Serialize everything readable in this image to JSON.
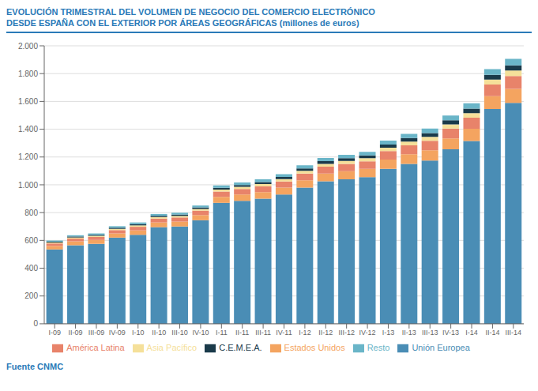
{
  "chart_data": {
    "type": "bar",
    "title": "EVOLUCIÓN TRIMESTRAL DEL VOLUMEN DE NEGOCIO DEL COMERCIO ELECTRÓNICO",
    "subtitle": "DESDE ESPAÑA CON EL EXTERIOR POR ÁREAS GEOGRÁFICAS (millones de euros)",
    "annotations": [
      "Fuente CNMC"
    ],
    "stacked": true,
    "grid": true,
    "legend": "bottom",
    "categories": [
      "I-09",
      "II-09",
      "III-09",
      "IV-09",
      "I-10",
      "II-10",
      "III-10",
      "IV-10",
      "I-11",
      "II-11",
      "III-11",
      "IV-11",
      "I-12",
      "II-12",
      "III-12",
      "IV-12",
      "I-13",
      "II-13",
      "III-13",
      "IV-13",
      "I-14",
      "II-14",
      "III-14"
    ],
    "series": [
      {
        "name": "Unión Europea",
        "color": "#4a8db5",
        "values": [
          535,
          565,
          575,
          620,
          640,
          695,
          700,
          745,
          870,
          885,
          900,
          930,
          980,
          1025,
          1040,
          1055,
          1115,
          1150,
          1175,
          1255,
          1315,
          1545,
          1590
        ]
      },
      {
        "name": "Estados Unidos",
        "color": "#f4a460",
        "values": [
          25,
          28,
          28,
          30,
          32,
          34,
          35,
          37,
          43,
          45,
          47,
          50,
          53,
          56,
          58,
          60,
          67,
          70,
          74,
          78,
          88,
          92,
          100
        ]
      },
      {
        "name": "América Latina",
        "color": "#e8836a",
        "values": [
          18,
          20,
          22,
          24,
          26,
          28,
          30,
          32,
          38,
          40,
          42,
          44,
          48,
          50,
          52,
          54,
          60,
          64,
          68,
          72,
          80,
          84,
          92
        ]
      },
      {
        "name": "Asia Pacífico",
        "color": "#f5e09a",
        "values": [
          7,
          8,
          8,
          9,
          10,
          11,
          11,
          12,
          14,
          15,
          16,
          17,
          19,
          20,
          21,
          22,
          25,
          27,
          28,
          30,
          33,
          36,
          40
        ]
      },
      {
        "name": "C.E.M.E.A.",
        "color": "#1a3a4a",
        "values": [
          6,
          7,
          7,
          8,
          9,
          9,
          10,
          11,
          13,
          14,
          15,
          16,
          18,
          19,
          20,
          21,
          23,
          25,
          27,
          29,
          32,
          34,
          38
        ]
      },
      {
        "name": "Resto",
        "color": "#6ab5c8",
        "values": [
          8,
          9,
          10,
          11,
          12,
          13,
          13,
          14,
          17,
          18,
          19,
          20,
          22,
          23,
          24,
          25,
          28,
          30,
          32,
          35,
          39,
          42,
          46
        ]
      }
    ],
    "ylim": [
      0,
      2000
    ],
    "yticks": [
      0,
      200,
      400,
      600,
      800,
      {
        "value": 1000,
        "label": "1.000"
      },
      {
        "value": 1200,
        "label": "1.200"
      },
      {
        "value": 1400,
        "label": "1.400"
      },
      {
        "value": 1600,
        "label": "1.600"
      },
      {
        "value": 1800,
        "label": "1.800"
      },
      {
        "value": 2000,
        "label": "2.000"
      }
    ]
  }
}
